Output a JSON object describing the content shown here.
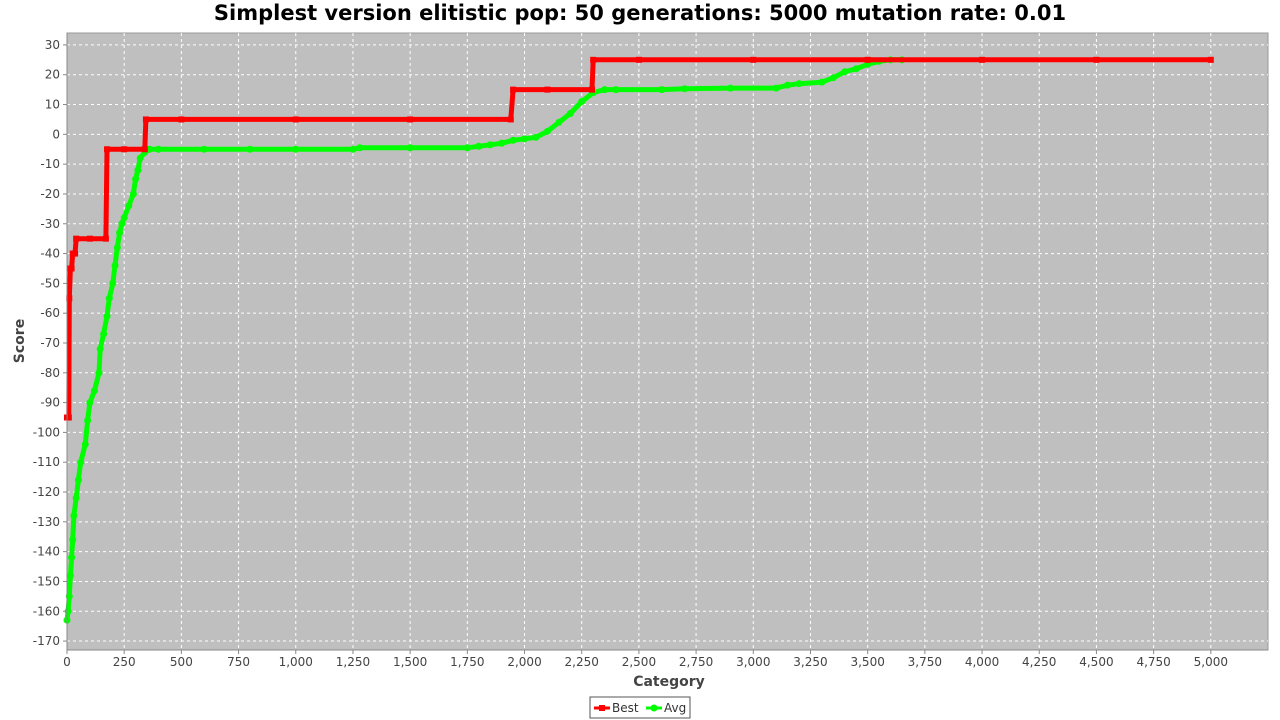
{
  "chart_data": {
    "type": "line",
    "title": "Simplest version elitistic pop: 50 generations: 5000 mutation rate: 0.01",
    "xlabel": "Category",
    "ylabel": "Score",
    "xlim": [
      0,
      5250
    ],
    "ylim": [
      -173,
      34
    ],
    "x_ticks": [
      0,
      250,
      500,
      750,
      1000,
      1250,
      1500,
      1750,
      2000,
      2250,
      2500,
      2750,
      3000,
      3250,
      3500,
      3750,
      4000,
      4250,
      4500,
      4750,
      5000
    ],
    "x_tick_labels": [
      "0",
      "250",
      "500",
      "750",
      "1,000",
      "1,250",
      "1,500",
      "1,750",
      "2,000",
      "2,250",
      "2,500",
      "2,750",
      "3,000",
      "3,250",
      "3,500",
      "3,750",
      "4,000",
      "4,250",
      "4,500",
      "4,750",
      "5,000"
    ],
    "y_ticks": [
      30,
      20,
      10,
      0,
      -10,
      -20,
      -30,
      -40,
      -50,
      -60,
      -70,
      -80,
      -90,
      -100,
      -110,
      -120,
      -130,
      -140,
      -150,
      -160,
      -170
    ],
    "y_tick_labels": [
      "30",
      "20",
      "10",
      "0",
      "-10",
      "-20",
      "-30",
      "-40",
      "-50",
      "-60",
      "-70",
      "-80",
      "-90",
      "-100",
      "-110",
      "-120",
      "-130",
      "-140",
      "-150",
      "-160",
      "-170"
    ],
    "grid": true,
    "legend_position": "bottom-center",
    "series": [
      {
        "name": "Best",
        "color": "#ff0000",
        "marker": "square",
        "points": [
          [
            0,
            -95
          ],
          [
            8,
            -95
          ],
          [
            10,
            -55
          ],
          [
            15,
            -45
          ],
          [
            20,
            -45
          ],
          [
            25,
            -40
          ],
          [
            35,
            -40
          ],
          [
            40,
            -35
          ],
          [
            100,
            -35
          ],
          [
            170,
            -35
          ],
          [
            175,
            -5
          ],
          [
            250,
            -5
          ],
          [
            340,
            -5
          ],
          [
            345,
            5
          ],
          [
            500,
            5
          ],
          [
            1000,
            5
          ],
          [
            1500,
            5
          ],
          [
            1940,
            5
          ],
          [
            1950,
            15
          ],
          [
            2100,
            15
          ],
          [
            2295,
            15
          ],
          [
            2300,
            25
          ],
          [
            2500,
            25
          ],
          [
            3000,
            25
          ],
          [
            3500,
            25
          ],
          [
            4000,
            25
          ],
          [
            4500,
            25
          ],
          [
            5000,
            25
          ]
        ]
      },
      {
        "name": "Avg",
        "color": "#00ff00",
        "marker": "circle",
        "points": [
          [
            0,
            -163
          ],
          [
            5,
            -160
          ],
          [
            10,
            -155
          ],
          [
            15,
            -148
          ],
          [
            20,
            -142
          ],
          [
            25,
            -136
          ],
          [
            30,
            -128
          ],
          [
            40,
            -122
          ],
          [
            50,
            -116
          ],
          [
            60,
            -110
          ],
          [
            80,
            -104
          ],
          [
            90,
            -96
          ],
          [
            100,
            -90
          ],
          [
            120,
            -86
          ],
          [
            140,
            -80
          ],
          [
            145,
            -72
          ],
          [
            160,
            -67
          ],
          [
            175,
            -61
          ],
          [
            185,
            -55
          ],
          [
            200,
            -50
          ],
          [
            210,
            -44
          ],
          [
            220,
            -38
          ],
          [
            230,
            -33
          ],
          [
            240,
            -30
          ],
          [
            250,
            -28
          ],
          [
            270,
            -24
          ],
          [
            290,
            -20
          ],
          [
            300,
            -15
          ],
          [
            310,
            -12
          ],
          [
            320,
            -8
          ],
          [
            340,
            -6
          ],
          [
            360,
            -5
          ],
          [
            400,
            -5
          ],
          [
            600,
            -5
          ],
          [
            800,
            -5
          ],
          [
            1000,
            -5
          ],
          [
            1250,
            -5
          ],
          [
            1280,
            -4.5
          ],
          [
            1500,
            -4.5
          ],
          [
            1750,
            -4.5
          ],
          [
            1800,
            -4
          ],
          [
            1850,
            -3.5
          ],
          [
            1900,
            -3
          ],
          [
            1950,
            -2
          ],
          [
            2000,
            -1.5
          ],
          [
            2050,
            -1
          ],
          [
            2100,
            1
          ],
          [
            2150,
            4
          ],
          [
            2200,
            7
          ],
          [
            2250,
            11
          ],
          [
            2300,
            14
          ],
          [
            2350,
            15
          ],
          [
            2400,
            15
          ],
          [
            2600,
            15
          ],
          [
            2700,
            15.3
          ],
          [
            2900,
            15.5
          ],
          [
            3100,
            15.5
          ],
          [
            3150,
            16.5
          ],
          [
            3200,
            17
          ],
          [
            3300,
            17.5
          ],
          [
            3350,
            19
          ],
          [
            3400,
            21
          ],
          [
            3450,
            22
          ],
          [
            3500,
            23.5
          ],
          [
            3550,
            24.5
          ],
          [
            3600,
            25
          ],
          [
            3650,
            25
          ]
        ]
      }
    ]
  }
}
